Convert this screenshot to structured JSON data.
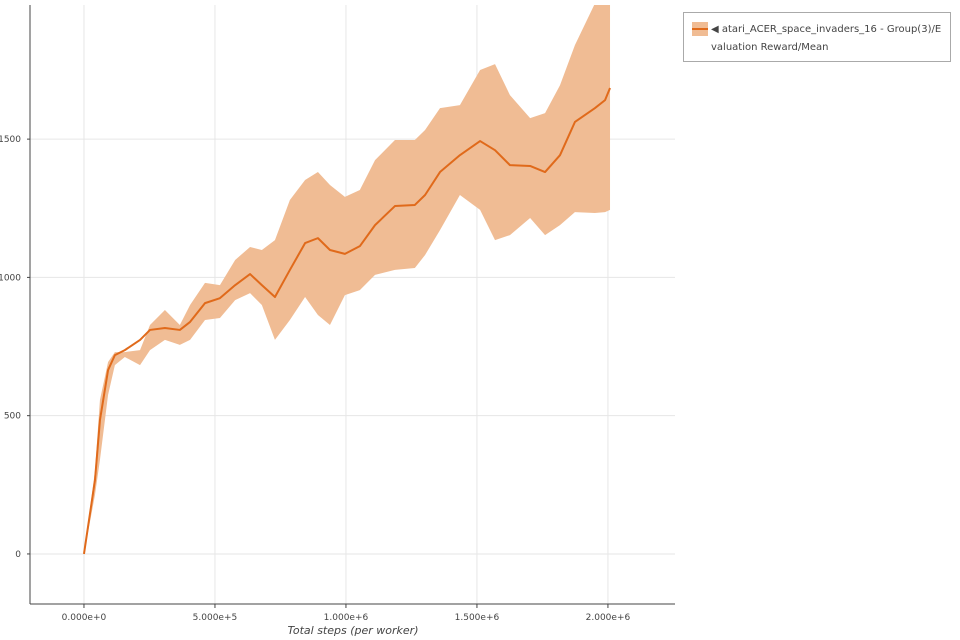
{
  "chart_data": {
    "type": "line",
    "x_label": "Total steps (per worker)",
    "x": [
      0,
      42000,
      61000,
      92000,
      118000,
      156000,
      214000,
      252000,
      309000,
      366000,
      405000,
      462000,
      519000,
      577000,
      634000,
      679000,
      729000,
      786000,
      844000,
      893000,
      939000,
      996000,
      1053000,
      1111000,
      1187000,
      1263000,
      1302000,
      1359000,
      1435000,
      1512000,
      1569000,
      1626000,
      1703000,
      1760000,
      1817000,
      1874000,
      1950000,
      1989000,
      2008000
    ],
    "series": [
      {
        "name": "◀ atari_ACER_space_invaders_16 - Group(3)/Evaluation Reward/Mean",
        "color": "#e06a1b",
        "band_color": "#f0bc94",
        "values": [
          0,
          267,
          484,
          665,
          719,
          737,
          774,
          810,
          817,
          810,
          839,
          907,
          925,
          972,
          1012,
          972,
          929,
          1027,
          1124,
          1142,
          1099,
          1085,
          1113,
          1189,
          1258,
          1262,
          1298,
          1381,
          1442,
          1493,
          1460,
          1406,
          1403,
          1381,
          1442,
          1562,
          1612,
          1641,
          1685
        ],
        "upper": [
          0,
          300,
          557,
          694,
          730,
          730,
          737,
          828,
          882,
          828,
          900,
          980,
          972,
          1063,
          1110,
          1099,
          1135,
          1280,
          1352,
          1381,
          1334,
          1291,
          1316,
          1424,
          1497,
          1497,
          1533,
          1612,
          1623,
          1750,
          1771,
          1659,
          1576,
          1594,
          1695,
          1840,
          1990,
          2000,
          2000
        ],
        "lower": [
          0,
          213,
          340,
          575,
          683,
          712,
          683,
          737,
          774,
          756,
          774,
          846,
          853,
          918,
          943,
          900,
          774,
          846,
          929,
          864,
          828,
          936,
          954,
          1009,
          1027,
          1034,
          1081,
          1171,
          1298,
          1244,
          1135,
          1153,
          1215,
          1153,
          1189,
          1236,
          1233,
          1236,
          1244
        ]
      }
    ],
    "xlim": [
      -206000,
      2256000
    ],
    "ylim": [
      -181,
      1985
    ],
    "xticks": [
      {
        "value": 0,
        "label": "0.000e+0"
      },
      {
        "value": 500000,
        "label": "5.000e+5"
      },
      {
        "value": 1000000,
        "label": "1.000e+6"
      },
      {
        "value": 1500000,
        "label": "1.500e+6"
      },
      {
        "value": 2000000,
        "label": "2.000e+6"
      }
    ],
    "yticks": [
      0,
      500,
      1000,
      1500
    ],
    "grid": true
  }
}
